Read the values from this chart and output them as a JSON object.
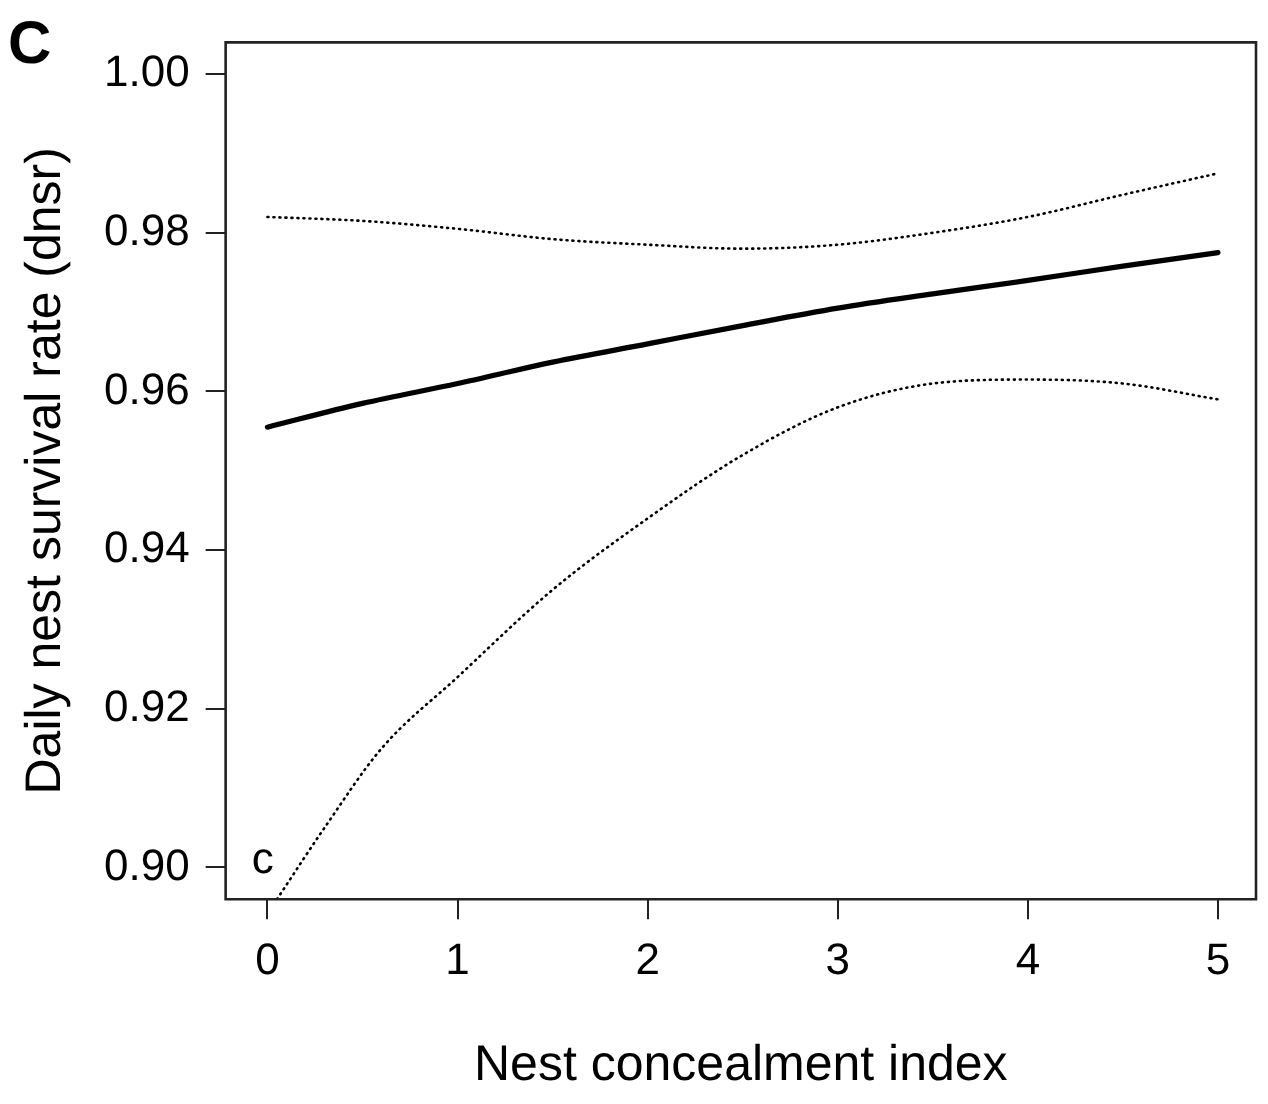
{
  "chart_data": {
    "type": "line",
    "title": "C",
    "xlabel": "Nest concealment index",
    "ylabel": "Daily nest survival rate (dnsr)",
    "xlim": [
      -0.22,
      5.2
    ],
    "xticks": [
      0,
      1,
      2,
      3,
      4,
      5
    ],
    "ylim": [
      0.896,
      1.004
    ],
    "yticks": [
      {
        "value": 0.9,
        "label": "0.90"
      },
      {
        "value": 0.92,
        "label": "0.92"
      },
      {
        "value": 0.94,
        "label": "0.94"
      },
      {
        "value": 0.96,
        "label": "0.96"
      },
      {
        "value": 0.98,
        "label": "0.98"
      },
      {
        "value": 1.0,
        "label": "1.00"
      }
    ],
    "grid": false,
    "legend": false,
    "marker": "none",
    "annotations": [
      "c"
    ],
    "series": [
      {
        "color": "#000000",
        "line_style": "solid",
        "x": [
          0,
          0.5,
          1,
          1.5,
          2,
          2.5,
          3,
          3.5,
          4,
          4.5,
          5
        ],
        "values": [
          0.9555,
          0.9585,
          0.961,
          0.9637,
          0.966,
          0.9683,
          0.9705,
          0.9723,
          0.974,
          0.9758,
          0.9775
        ]
      },
      {
        "color": "#000000",
        "line_style": "dotted",
        "x": [
          0,
          0.5,
          1,
          1.5,
          2,
          2.5,
          3,
          3.5,
          4,
          4.5,
          5
        ],
        "values": [
          0.982,
          0.9815,
          0.9805,
          0.9792,
          0.9785,
          0.978,
          0.9785,
          0.98,
          0.982,
          0.9848,
          0.9875
        ]
      },
      {
        "color": "#000000",
        "line_style": "dotted",
        "x": [
          0.05,
          0.3,
          0.6,
          1,
          1.5,
          2,
          2.5,
          3,
          3.5,
          4,
          4.5,
          5
        ],
        "values": [
          0.896,
          0.905,
          0.915,
          0.924,
          0.935,
          0.944,
          0.952,
          0.958,
          0.961,
          0.9615,
          0.961,
          0.959
        ]
      }
    ]
  }
}
